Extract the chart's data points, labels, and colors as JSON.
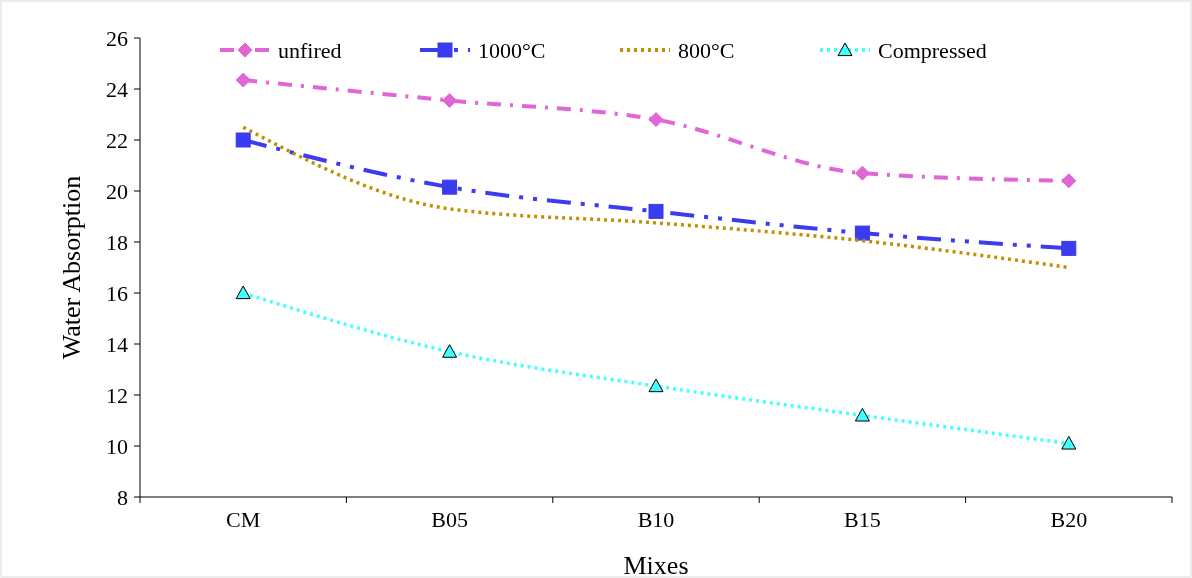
{
  "chart_data": {
    "type": "line",
    "xlabel": "Mixes",
    "ylabel": "Water Absorption",
    "categories": [
      "CM",
      "B05",
      "B10",
      "B15",
      "B20"
    ],
    "series": [
      {
        "name": "unfired",
        "color": "#e066d6",
        "marker": "diamond",
        "line_style": "dashdot",
        "values": [
          24.35,
          23.55,
          22.8,
          20.7,
          20.4
        ]
      },
      {
        "name": "1000°C",
        "color": "#3b3bf0",
        "marker": "square",
        "line_style": "longdashdot",
        "values": [
          22.0,
          20.15,
          19.2,
          18.35,
          17.75
        ]
      },
      {
        "name": "800°C",
        "color": "#c09000",
        "marker": "none",
        "line_style": "dotted",
        "values": [
          22.5,
          19.3,
          18.75,
          18.05,
          17.0
        ]
      },
      {
        "name": "Compressed",
        "color": "#44ffff",
        "marker": "triangle",
        "line_style": "dotted",
        "values": [
          16.0,
          13.7,
          12.35,
          11.2,
          10.1
        ]
      }
    ],
    "ylim": [
      8,
      26
    ],
    "yticks": [
      8,
      10,
      12,
      14,
      16,
      18,
      20,
      22,
      24,
      26
    ],
    "grid": false,
    "legend": "top"
  }
}
